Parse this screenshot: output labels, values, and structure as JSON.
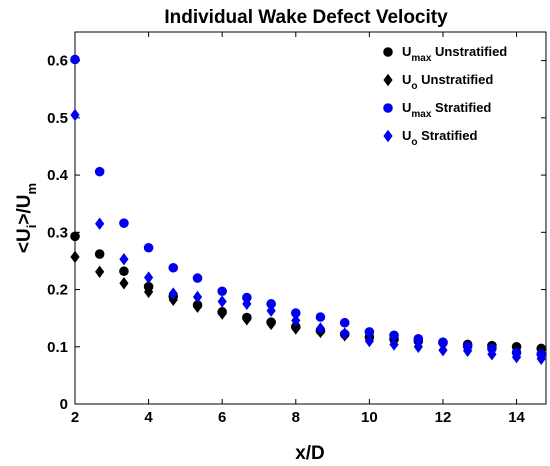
{
  "chart_data": {
    "type": "scatter",
    "title": "Individual Wake Defect Velocity",
    "xlabel": "x/D",
    "ylabel": {
      "prefix": "<U",
      "sub1": "i",
      "mid": ">/U",
      "sub2": "m"
    },
    "xlim": [
      2,
      14.8
    ],
    "ylim": [
      0,
      0.65
    ],
    "xticks": [
      "2",
      "4",
      "6",
      "8",
      "10",
      "12",
      "14"
    ],
    "yticks": [
      "0",
      "0.1",
      "0.2",
      "0.3",
      "0.4",
      "0.5",
      "0.6"
    ],
    "xtick_values": [
      2,
      4,
      6,
      8,
      10,
      12,
      14
    ],
    "ytick_values": [
      0,
      0.1,
      0.2,
      0.3,
      0.4,
      0.5,
      0.6
    ],
    "legend_position": "top-right",
    "series": [
      {
        "name": "U max Unstratified",
        "legend": {
          "main": "U",
          "sub": "max",
          "rest": " Unstratified"
        },
        "marker": "circle",
        "color": "#000000",
        "x": [
          2.0,
          2.67,
          3.33,
          4.0,
          4.67,
          5.33,
          6.0,
          6.67,
          7.33,
          8.0,
          8.67,
          9.33,
          10.0,
          10.67,
          11.33,
          12.0,
          12.67,
          13.33,
          14.0,
          14.67
        ],
        "y": [
          0.293,
          0.262,
          0.232,
          0.205,
          0.188,
          0.173,
          0.161,
          0.151,
          0.143,
          0.135,
          0.128,
          0.122,
          0.117,
          0.113,
          0.11,
          0.107,
          0.104,
          0.102,
          0.1,
          0.097
        ]
      },
      {
        "name": "U o Unstratified",
        "legend": {
          "main": "U",
          "sub": "o",
          "rest": " Unstratified"
        },
        "marker": "diamond",
        "color": "#000000",
        "x": [
          2.0,
          2.67,
          3.33,
          4.0,
          4.67,
          5.33,
          6.0,
          6.67,
          7.33,
          8.0,
          8.67,
          9.33,
          10.0,
          10.67,
          11.33,
          12.0,
          12.67,
          13.33,
          14.0,
          14.67
        ],
        "y": [
          0.257,
          0.231,
          0.211,
          0.196,
          0.182,
          0.17,
          0.158,
          0.148,
          0.14,
          0.132,
          0.126,
          0.12,
          0.116,
          0.112,
          0.108,
          0.105,
          0.102,
          0.1,
          0.098,
          0.095
        ]
      },
      {
        "name": "U max Stratified",
        "legend": {
          "main": "U",
          "sub": "max",
          "rest": " Stratified"
        },
        "marker": "circle",
        "color": "#0000ee",
        "x": [
          2.0,
          2.67,
          3.33,
          4.0,
          4.67,
          5.33,
          6.0,
          6.67,
          7.33,
          8.0,
          8.67,
          9.33,
          10.0,
          10.67,
          11.33,
          12.0,
          12.67,
          13.33,
          14.0,
          14.67
        ],
        "y": [
          0.602,
          0.406,
          0.316,
          0.273,
          0.238,
          0.22,
          0.197,
          0.186,
          0.175,
          0.159,
          0.152,
          0.142,
          0.126,
          0.12,
          0.114,
          0.108,
          0.101,
          0.097,
          0.09,
          0.087
        ]
      },
      {
        "name": "U o Stratified",
        "legend": {
          "main": "U",
          "sub": "o",
          "rest": " Stratified"
        },
        "marker": "diamond",
        "color": "#0000ee",
        "x": [
          2.0,
          2.67,
          3.33,
          4.0,
          4.67,
          5.33,
          6.0,
          6.67,
          7.33,
          8.0,
          8.67,
          9.33,
          10.0,
          10.67,
          11.33,
          12.0,
          12.67,
          13.33,
          14.0,
          14.67
        ],
        "y": [
          0.505,
          0.315,
          0.253,
          0.221,
          0.193,
          0.187,
          0.179,
          0.175,
          0.163,
          0.146,
          0.132,
          0.123,
          0.11,
          0.104,
          0.1,
          0.094,
          0.093,
          0.087,
          0.082,
          0.079
        ]
      }
    ]
  }
}
